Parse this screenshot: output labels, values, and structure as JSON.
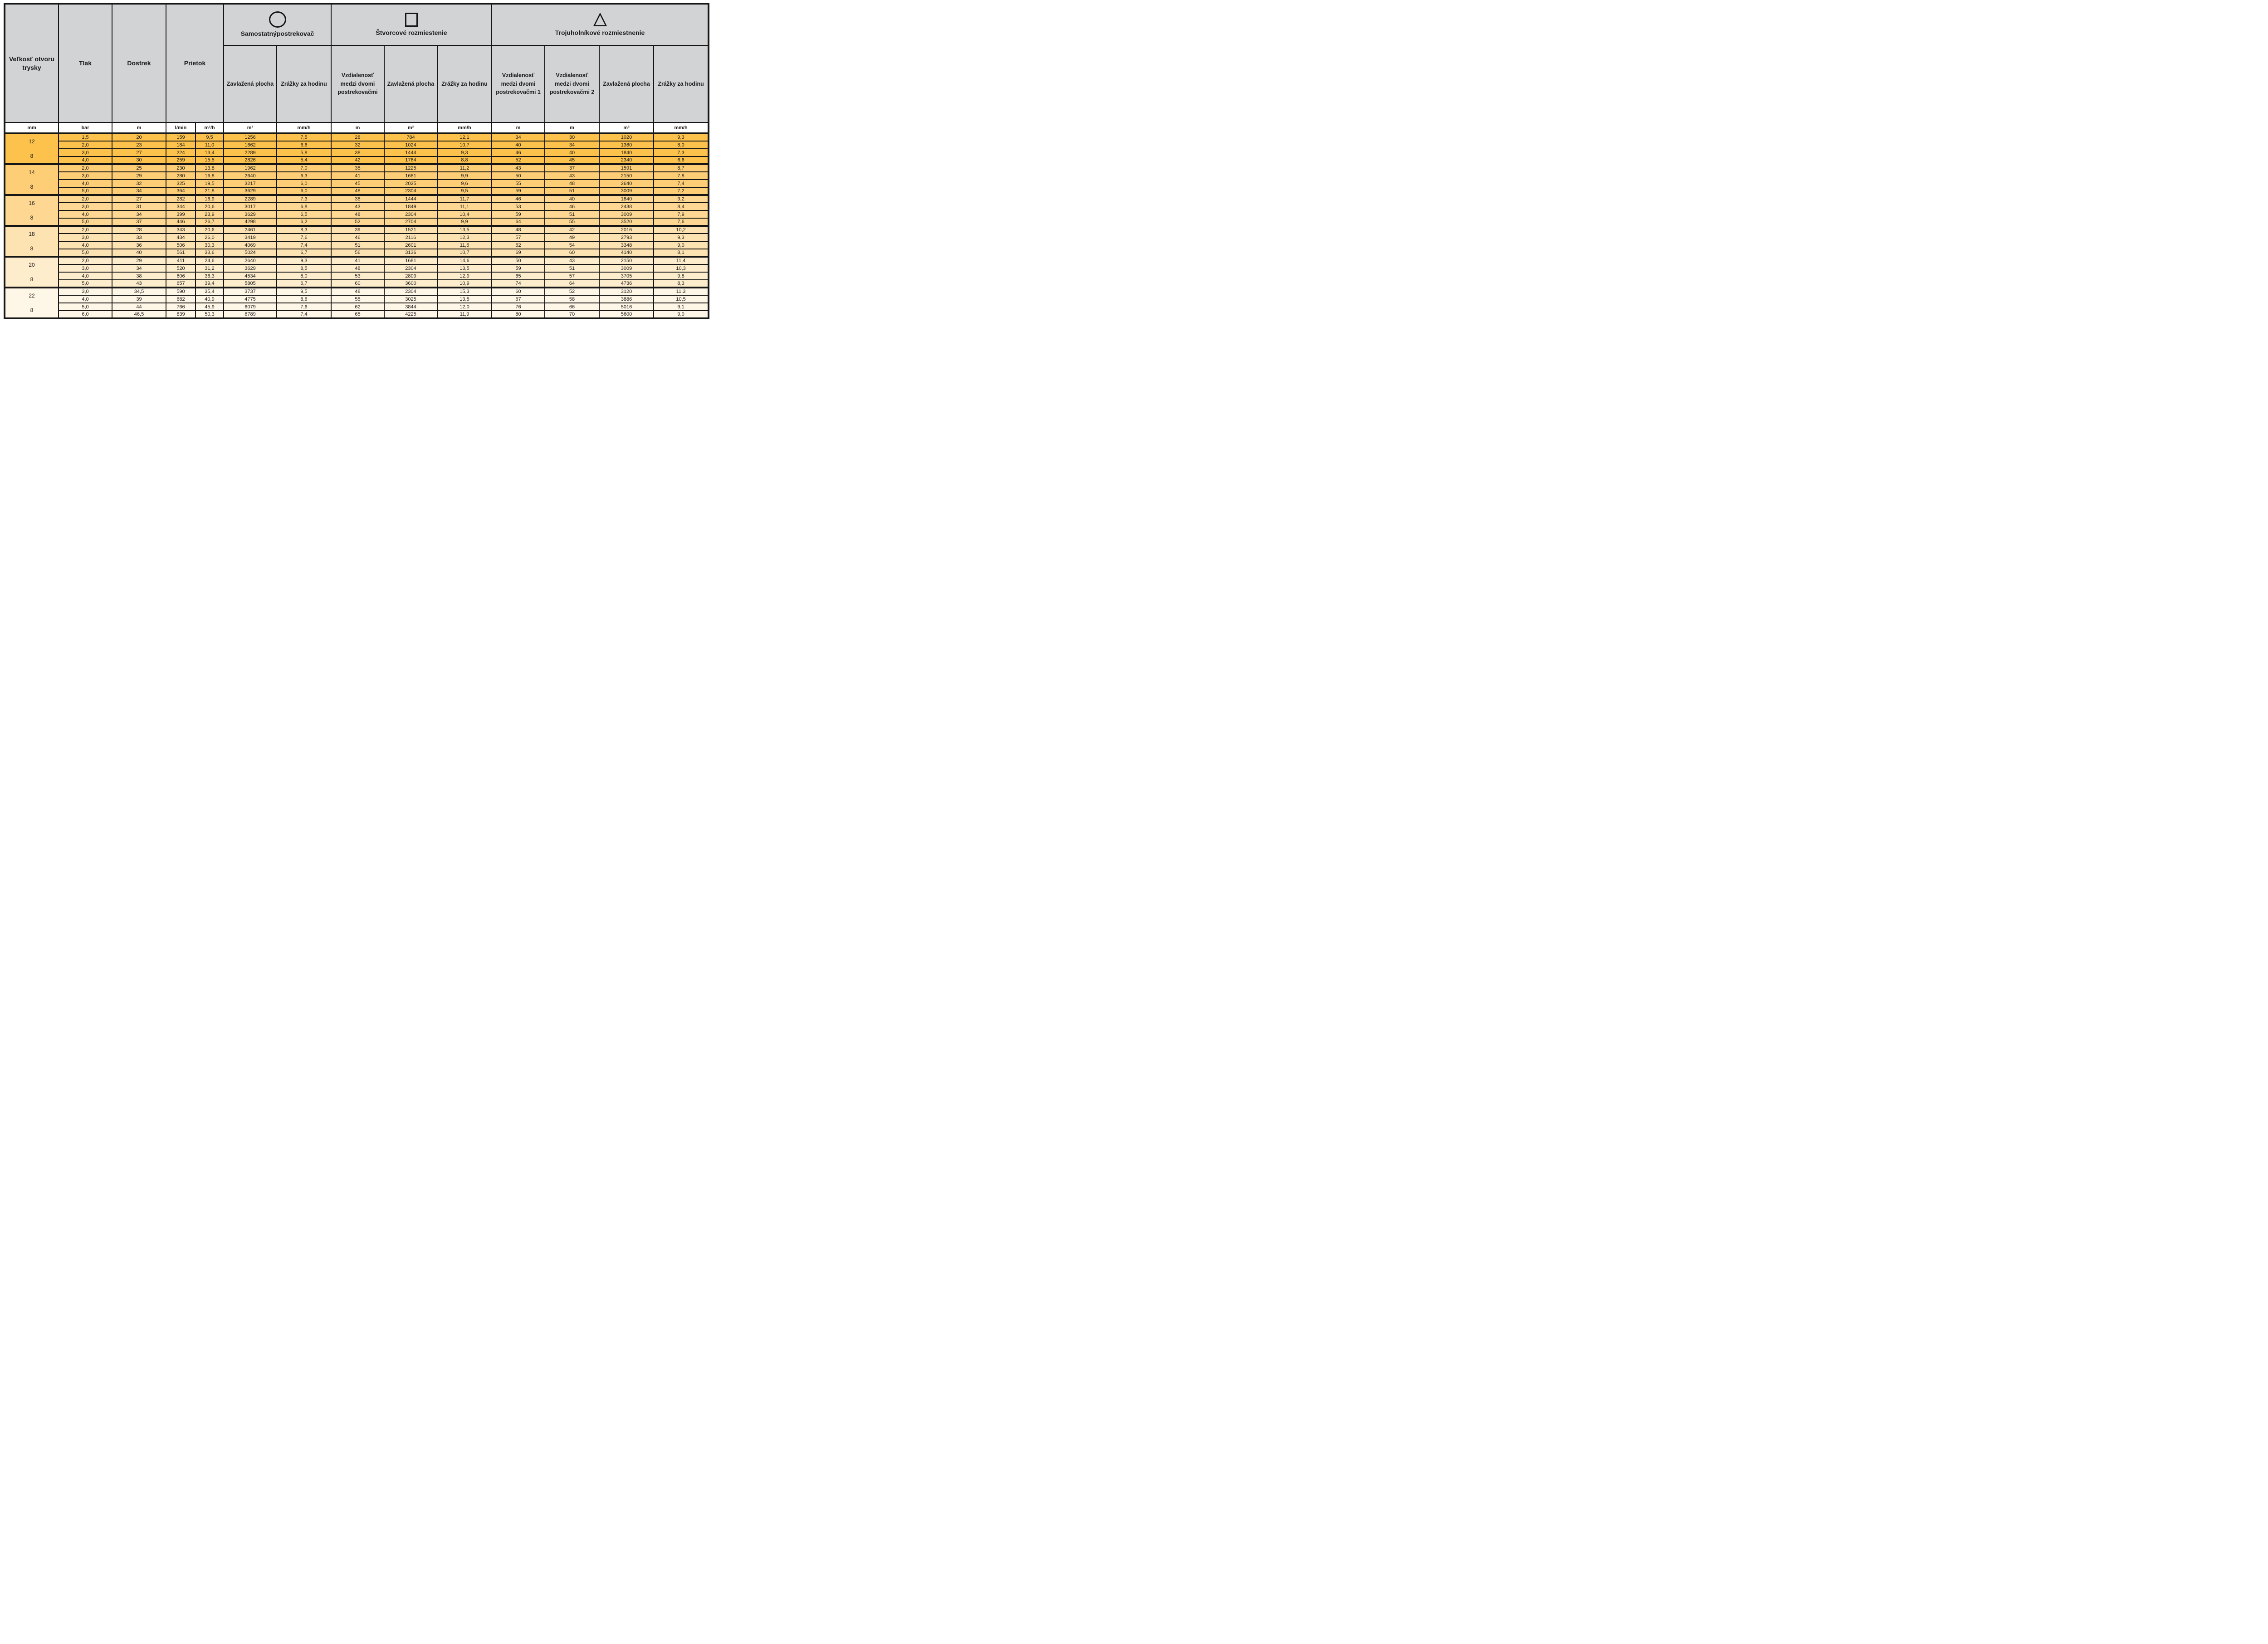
{
  "colors": {
    "border": "#161616",
    "header_bg": "#d2d3d5",
    "group_row_colors": [
      "#fdc24c",
      "#fdce75",
      "#fed892",
      "#fee3b2",
      "#feedcd",
      "#fef6e6"
    ]
  },
  "header": {
    "size_label": "Veľkosť otvoru trysky",
    "pressure_label": "Tlak",
    "radius_label": "Dostrek",
    "flow_label": "Prietok",
    "groups": [
      {
        "icon": "circle-icon",
        "title": "Samostatnýpostrekovač",
        "subs": [
          "Zavlažená plocha",
          "Zrážky za hodinu"
        ]
      },
      {
        "icon": "square-icon",
        "title": "Štvorcové rozmiestenie",
        "subs": [
          "Vzdialenosť medzi dvomi postrekovačmi",
          "Zavlažená plocha",
          "Zrážky za hodinu"
        ]
      },
      {
        "icon": "triangle-icon",
        "title": "Trojuholníkové rozmiestnenie",
        "subs": [
          "Vzdialenosť medzi dvomi postrekovačmi 1",
          "Vzdialenosť medzi dvomi postrekovačmi 2",
          "Zavlažená plocha",
          "Zrážky za hodinu"
        ]
      }
    ],
    "units": [
      "mm",
      "bar",
      "m",
      "l/min",
      "m³/h",
      "m²",
      "mm/h",
      "m",
      "m²",
      "mm/h",
      "m",
      "m",
      "m²",
      "mm/h"
    ]
  },
  "body": {
    "groups": [
      {
        "size_main": "12",
        "size_secondary": "8",
        "color": "#fdc24c",
        "rows": [
          [
            "1,5",
            "20",
            "159",
            "9,5",
            "1256",
            "7,5",
            "28",
            "784",
            "12,1",
            "34",
            "30",
            "1020",
            "9,3"
          ],
          [
            "2,0",
            "23",
            "184",
            "11,0",
            "1662",
            "6,6",
            "32",
            "1024",
            "10,7",
            "40",
            "34",
            "1360",
            "8,0"
          ],
          [
            "3,0",
            "27",
            "224",
            "13,4",
            "2289",
            "5,8",
            "38",
            "1444",
            "9,3",
            "46",
            "40",
            "1840",
            "7,3"
          ],
          [
            "4,0",
            "30",
            "259",
            "15,5",
            "2826",
            "5,4",
            "42",
            "1764",
            "8,8",
            "52",
            "45",
            "2340",
            "6,6"
          ]
        ]
      },
      {
        "size_main": "14",
        "size_secondary": "8",
        "color": "#fdce75",
        "rows": [
          [
            "2,0",
            "25",
            "230",
            "13,8",
            "1962",
            "7,0",
            "35",
            "1225",
            "11,2",
            "43",
            "37",
            "1591",
            "8,7"
          ],
          [
            "3,0",
            "29",
            "280",
            "16,8",
            "2640",
            "6,3",
            "41",
            "1681",
            "9,9",
            "50",
            "43",
            "2150",
            "7,8"
          ],
          [
            "4,0",
            "32",
            "325",
            "19,5",
            "3217",
            "6,0",
            "45",
            "2025",
            "9,6",
            "55",
            "48",
            "2640",
            "7,4"
          ],
          [
            "5,0",
            "34",
            "364",
            "21,8",
            "3629",
            "6,0",
            "48",
            "2304",
            "9,5",
            "59",
            "51",
            "3009",
            "7,2"
          ]
        ]
      },
      {
        "size_main": "16",
        "size_secondary": "8",
        "color": "#fed892",
        "rows": [
          [
            "2,0",
            "27",
            "282",
            "16,9",
            "2289",
            "7,3",
            "38",
            "1444",
            "11,7",
            "46",
            "40",
            "1840",
            "9,2"
          ],
          [
            "3,0",
            "31",
            "344",
            "20,6",
            "3017",
            "6,8",
            "43",
            "1849",
            "11,1",
            "53",
            "46",
            "2438",
            "8,4"
          ],
          [
            "4,0",
            "34",
            "399",
            "23,9",
            "3629",
            "6,5",
            "48",
            "2304",
            "10,4",
            "59",
            "51",
            "3009",
            "7,9"
          ],
          [
            "5,0",
            "37",
            "446",
            "26,7",
            "4298",
            "6,2",
            "52",
            "2704",
            "9,9",
            "64",
            "55",
            "3520",
            "7,6"
          ]
        ]
      },
      {
        "size_main": "18",
        "size_secondary": "8",
        "color": "#fee3b2",
        "rows": [
          [
            "2,0",
            "28",
            "343",
            "20,6",
            "2461",
            "8,3",
            "39",
            "1521",
            "13,5",
            "48",
            "42",
            "2016",
            "10,2"
          ],
          [
            "3,0",
            "33",
            "434",
            "26,0",
            "3419",
            "7,6",
            "46",
            "2116",
            "12,3",
            "57",
            "49",
            "2793",
            "9,3"
          ],
          [
            "4,0",
            "36",
            "506",
            "30,3",
            "4069",
            "7,4",
            "51",
            "2601",
            "11,6",
            "62",
            "54",
            "3348",
            "9,0"
          ],
          [
            "5,0",
            "40",
            "561",
            "33,6",
            "5024",
            "6,7",
            "56",
            "3136",
            "10,7",
            "69",
            "60",
            "4140",
            "8,1"
          ]
        ]
      },
      {
        "size_main": "20",
        "size_secondary": "8",
        "color": "#feedcd",
        "rows": [
          [
            "2,0",
            "29",
            "411",
            "24,6",
            "2640",
            "9,3",
            "41",
            "1681",
            "14,6",
            "50",
            "43",
            "2150",
            "11,4"
          ],
          [
            "3,0",
            "34",
            "520",
            "31,2",
            "3629",
            "8,5",
            "48",
            "2304",
            "13,5",
            "59",
            "51",
            "3009",
            "10,3"
          ],
          [
            "4,0",
            "38",
            "606",
            "36,3",
            "4534",
            "8,0",
            "53",
            "2809",
            "12,9",
            "65",
            "57",
            "3705",
            "9,8"
          ],
          [
            "5,0",
            "43",
            "657",
            "39,4",
            "5805",
            "6,7",
            "60",
            "3600",
            "10,9",
            "74",
            "64",
            "4736",
            "8,3"
          ]
        ]
      },
      {
        "size_main": "22",
        "size_secondary": "8",
        "color": "#fef6e6",
        "rows": [
          [
            "3,0",
            "34,5",
            "590",
            "35,4",
            "3737",
            "9,5",
            "48",
            "2304",
            "15,3",
            "60",
            "52",
            "3120",
            "11,3"
          ],
          [
            "4,0",
            "39",
            "682",
            "40,9",
            "4775",
            "8,6",
            "55",
            "3025",
            "13,5",
            "67",
            "58",
            "3886",
            "10,5"
          ],
          [
            "5,0",
            "44",
            "766",
            "45,9",
            "6079",
            "7,6",
            "62",
            "3844",
            "12,0",
            "76",
            "66",
            "5016",
            "9,1"
          ],
          [
            "6,0",
            "46,5",
            "839",
            "50,3",
            "6789",
            "7,4",
            "65",
            "4225",
            "11,9",
            "80",
            "70",
            "5600",
            "9,0"
          ]
        ]
      }
    ]
  }
}
